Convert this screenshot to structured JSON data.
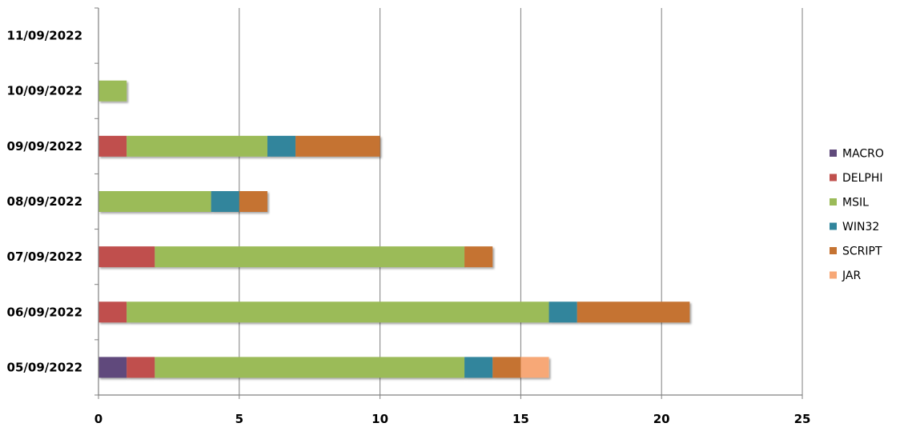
{
  "chart_data": {
    "type": "bar",
    "orientation": "horizontal",
    "stacked": true,
    "title": "",
    "xlabel": "",
    "ylabel": "",
    "categories": [
      "05/09/2022",
      "06/09/2022",
      "07/09/2022",
      "08/09/2022",
      "09/09/2022",
      "10/09/2022",
      "11/09/2022"
    ],
    "xlim": [
      0,
      25
    ],
    "xticks": [
      "0",
      "5",
      "10",
      "15",
      "20",
      "25"
    ],
    "grid": true,
    "legend_position": "right",
    "series": [
      {
        "name": "MACRO",
        "color": "#604A7B",
        "values": [
          1,
          0,
          0,
          0,
          0,
          0,
          0
        ]
      },
      {
        "name": "DELPHI",
        "color": "#C0504D",
        "values": [
          1,
          1,
          2,
          0,
          1,
          0,
          0
        ]
      },
      {
        "name": "MSIL",
        "color": "#9BBB59",
        "values": [
          11,
          15,
          11,
          4,
          5,
          1,
          0
        ]
      },
      {
        "name": "WIN32",
        "color": "#31859C",
        "values": [
          1,
          1,
          0,
          1,
          1,
          0,
          0
        ]
      },
      {
        "name": "SCRIPT",
        "color": "#C57332",
        "values": [
          1,
          4,
          1,
          1,
          3,
          0,
          0
        ]
      },
      {
        "name": "JAR",
        "color": "#F7A877",
        "values": [
          1,
          0,
          0,
          0,
          0,
          0,
          0
        ]
      }
    ]
  }
}
